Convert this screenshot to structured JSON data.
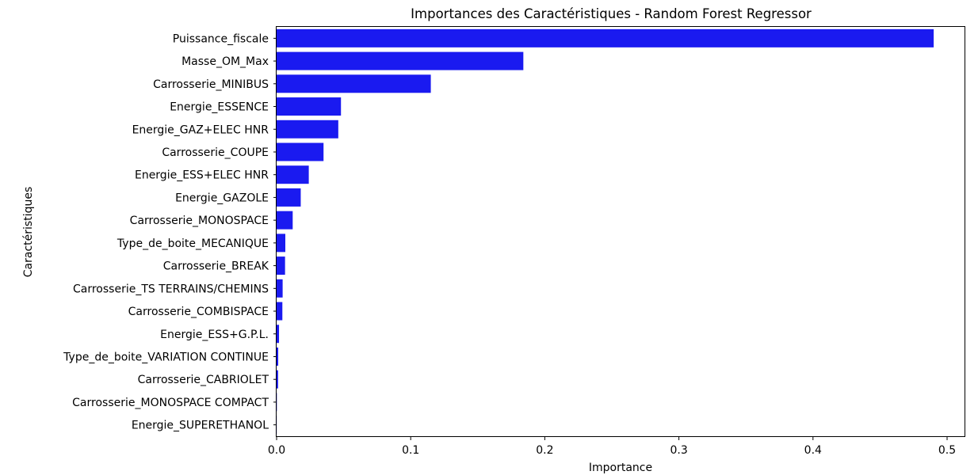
{
  "chart_data": {
    "type": "bar",
    "orientation": "horizontal",
    "title": "Importances des Caractéristiques - Random Forest Regressor",
    "xlabel": "Importance",
    "ylabel": "Caractéristiques",
    "xlim": [
      0.0,
      0.513
    ],
    "xticks": [
      "0.0",
      "0.1",
      "0.2",
      "0.3",
      "0.4",
      "0.5"
    ],
    "grid": false,
    "bar_color": "#1a1af0",
    "categories": [
      "Puissance_fiscale",
      "Masse_OM_Max",
      "Carrosserie_MINIBUS",
      "Energie_ESSENCE",
      "Energie_GAZ+ELEC HNR",
      "Carrosserie_COUPE",
      "Energie_ESS+ELEC HNR",
      "Energie_GAZOLE",
      "Carrosserie_MONOSPACE",
      "Type_de_boite_MECANIQUE",
      "Carrosserie_BREAK",
      "Carrosserie_TS TERRAINS/CHEMINS",
      "Carrosserie_COMBISPACE",
      "Energie_ESS+G.P.L.",
      "Type_de_boite_VARIATION CONTINUE",
      "Carrosserie_CABRIOLET",
      "Carrosserie_MONOSPACE COMPACT",
      "Energie_SUPERETHANOL"
    ],
    "values": [
      0.49,
      0.184,
      0.115,
      0.048,
      0.046,
      0.035,
      0.024,
      0.018,
      0.012,
      0.0065,
      0.0063,
      0.0045,
      0.0043,
      0.0018,
      0.0012,
      0.0011,
      0.0002,
      0.0001
    ]
  }
}
